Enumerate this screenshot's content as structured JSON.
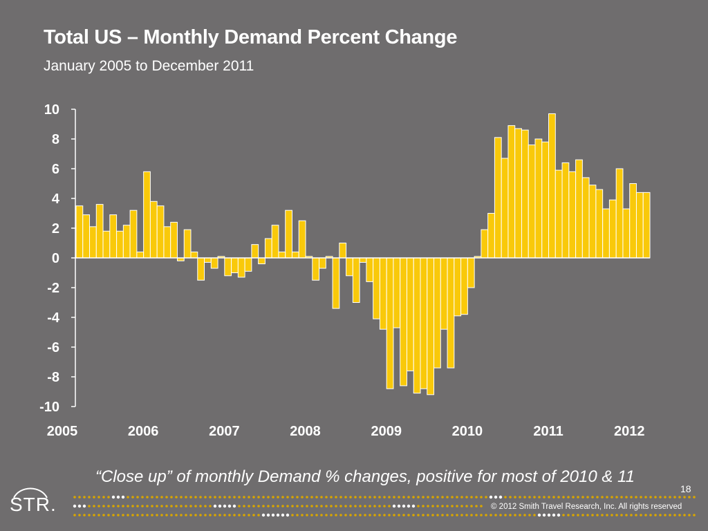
{
  "slide": {
    "title": "Total US – Monthly Demand Percent Change",
    "subtitle": "January 2005 to December 2011",
    "caption": "“Close up” of monthly Demand % changes, positive for most of 2010 & 11",
    "page_number": "18",
    "logo_text": "STR.",
    "copyright": "© 2012 Smith Travel Research, Inc. All rights reserved"
  },
  "colors": {
    "background": "#6f6d6e",
    "bar_fill": "#f9c90a",
    "bar_stroke": "#ffffff",
    "axis": "#ffffff",
    "dots_light": "#d9a600",
    "dots_white": "#ffffff"
  },
  "chart_data": {
    "type": "bar",
    "title": "Total US – Monthly Demand Percent Change",
    "subtitle": "January 2005 to December 2011",
    "ylim": [
      -10,
      10
    ],
    "yticks": [
      "10",
      "8",
      "6",
      "4",
      "2",
      "0",
      "-2",
      "-4",
      "-6",
      "-8",
      "-10"
    ],
    "ytick_values": [
      10,
      8,
      6,
      4,
      2,
      0,
      -2,
      -4,
      -6,
      -8,
      -10
    ],
    "xticks": [
      "2005",
      "2006",
      "2007",
      "2008",
      "2009",
      "2010",
      "2011",
      "2012"
    ],
    "grid": false,
    "legend": "none",
    "period": "Jan 2005 – Dec 2011, monthly",
    "values": [
      3.5,
      2.9,
      2.1,
      3.6,
      1.8,
      2.9,
      1.8,
      2.2,
      3.2,
      0.4,
      5.8,
      3.8,
      3.5,
      2.1,
      2.4,
      -0.2,
      1.9,
      0.4,
      -1.5,
      -0.3,
      -0.7,
      0.1,
      -1.2,
      -1.0,
      -1.3,
      -0.9,
      0.9,
      -0.4,
      1.3,
      2.2,
      0.4,
      3.2,
      0.4,
      2.5,
      0.1,
      -1.5,
      -0.7,
      0.1,
      -3.4,
      1.0,
      -1.2,
      -3.0,
      -0.3,
      -1.6,
      -4.1,
      -4.8,
      -8.8,
      -4.7,
      -8.6,
      -7.6,
      -9.1,
      -8.8,
      -9.2,
      -7.4,
      -4.8,
      -7.4,
      -3.9,
      -3.8,
      -2.0,
      0.1,
      1.9,
      3.0,
      8.1,
      6.7,
      8.9,
      8.7,
      8.6,
      7.6,
      8.0,
      7.8,
      9.7,
      5.9,
      6.4,
      5.8,
      6.6,
      5.4,
      4.9,
      4.6,
      3.3,
      3.9,
      6.0,
      3.3,
      5.0,
      4.4,
      4.4
    ]
  }
}
